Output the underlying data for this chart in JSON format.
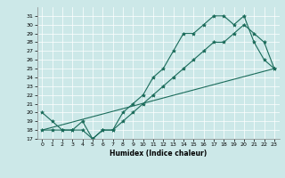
{
  "title": "",
  "xlabel": "Humidex (Indice chaleur)",
  "xlim": [
    -0.5,
    23.5
  ],
  "ylim": [
    17,
    32
  ],
  "yticks": [
    17,
    18,
    19,
    20,
    21,
    22,
    23,
    24,
    25,
    26,
    27,
    28,
    29,
    30,
    31
  ],
  "xticks": [
    0,
    1,
    2,
    3,
    4,
    5,
    6,
    7,
    8,
    9,
    10,
    11,
    12,
    13,
    14,
    15,
    16,
    17,
    18,
    19,
    20,
    21,
    22,
    23
  ],
  "bg_color": "#cce8e8",
  "line_color": "#1a6b5a",
  "line1_x": [
    0,
    1,
    2,
    3,
    4,
    5,
    6,
    7,
    8,
    9,
    10,
    11,
    12,
    13,
    14,
    15,
    16,
    17,
    18,
    19,
    20,
    21,
    22,
    23
  ],
  "line1_y": [
    20,
    19,
    18,
    18,
    19,
    17,
    18,
    18,
    20,
    21,
    22,
    24,
    25,
    27,
    29,
    29,
    30,
    31,
    31,
    30,
    31,
    28,
    26,
    25
  ],
  "line2_x": [
    0,
    1,
    2,
    3,
    4,
    5,
    6,
    7,
    8,
    9,
    10,
    11,
    12,
    13,
    14,
    15,
    16,
    17,
    18,
    19,
    20,
    21,
    22,
    23
  ],
  "line2_y": [
    18,
    18,
    18,
    18,
    18,
    17,
    18,
    18,
    19,
    20,
    21,
    22,
    23,
    24,
    25,
    26,
    27,
    28,
    28,
    29,
    30,
    29,
    28,
    25
  ],
  "line3_x": [
    0,
    23
  ],
  "line3_y": [
    18,
    25
  ]
}
